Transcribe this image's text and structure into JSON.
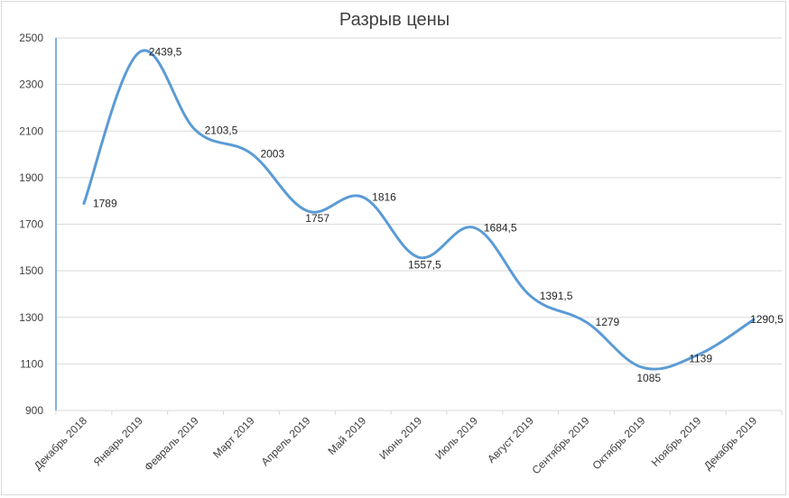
{
  "chart_data": {
    "type": "line",
    "title": "Разрыв цены",
    "xlabel": "",
    "ylabel": "",
    "categories": [
      "Декабрь 2018",
      "Январь 2019",
      "Февраль 2019",
      "Март 2019",
      "Апрель 2019",
      "Май 2019",
      "Июнь 2019",
      "Июль 2019",
      "Август 2019",
      "Сентябрь 2019",
      "Октябрь 2019",
      "Ноябрь 2019",
      "Декабрь 2019"
    ],
    "series": [
      {
        "values": [
          1789,
          2439.5,
          2103.5,
          2003,
          1757,
          1816,
          1557.5,
          1684.5,
          1391.5,
          1279,
          1085,
          1139,
          1290.5
        ],
        "data_labels": [
          "1789",
          "2439,5",
          "2103,5",
          "2003",
          "1757",
          "1816",
          "1557,5",
          "1684,5",
          "1391,5",
          "1279",
          "1085",
          "1139",
          "1290,5"
        ],
        "color": "#5b9bd5",
        "smooth": true
      }
    ],
    "ylim": [
      900,
      2500
    ],
    "yticks": [
      900,
      1100,
      1300,
      1500,
      1700,
      1900,
      2100,
      2300,
      2500
    ],
    "grid": true,
    "legend": "none"
  }
}
